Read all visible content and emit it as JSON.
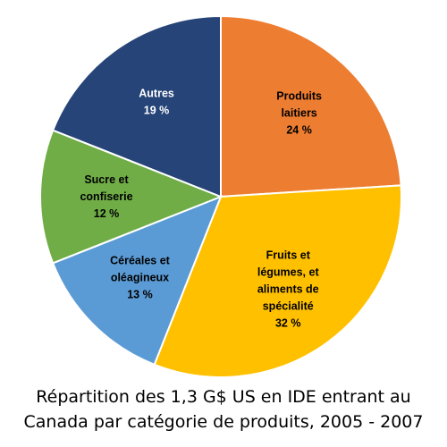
{
  "chart_data": {
    "type": "pie",
    "title": "Répartition des 1,3 G$ US en IDE entrant au Canada par catégorie de produits, 2005 - 2007",
    "title_lines": [
      "Répartition des 1,3 G$ US en IDE entrant au",
      "Canada par catégorie de produits, 2005 - 2007"
    ],
    "start_angle_deg": 0,
    "direction": "clockwise",
    "slices": [
      {
        "name": "Produits laitiers",
        "label_lines": [
          "Produits",
          "laitiers"
        ],
        "value": 24,
        "value_label": "24 %",
        "color": "#ED7D31",
        "text_color": "#000000"
      },
      {
        "name": "Fruits et légumes, et aliments de spécialité",
        "label_lines": [
          "Fruits et",
          "légumes, et",
          "aliments de",
          "spécialité"
        ],
        "value": 32,
        "value_label": "32 %",
        "color": "#FFC000",
        "text_color": "#000000"
      },
      {
        "name": "Céréales et oléagineux",
        "label_lines": [
          "Céréales et",
          "oléagineux"
        ],
        "value": 13,
        "value_label": "13 %",
        "color": "#5B9BD5",
        "text_color": "#000000"
      },
      {
        "name": "Sucre et confiserie",
        "label_lines": [
          "Sucre et",
          "confiserie"
        ],
        "value": 12,
        "value_label": "12 %",
        "color": "#70AD47",
        "text_color": "#000000"
      },
      {
        "name": "Autres",
        "label_lines": [
          "Autres"
        ],
        "value": 19,
        "value_label": "19 %",
        "color": "#264478",
        "text_color": "#FFFFFF"
      }
    ]
  }
}
